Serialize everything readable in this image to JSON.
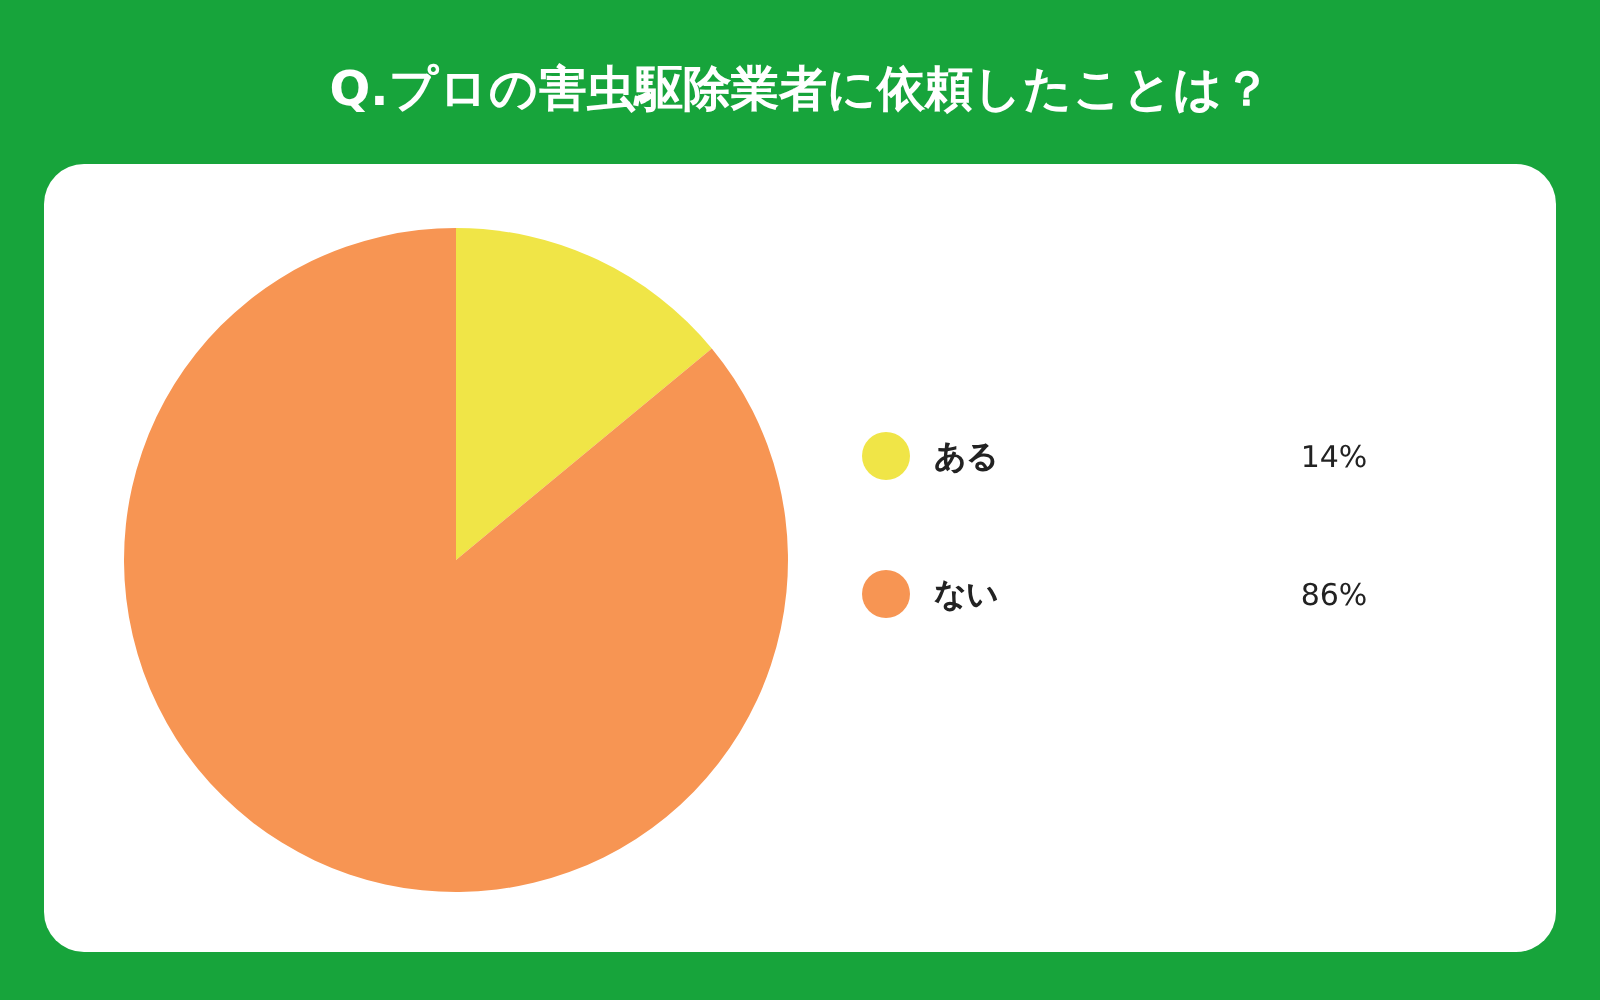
{
  "chart_data": {
    "type": "pie",
    "title": "Q.プロの害虫駆除業者に依頼したことは？",
    "categories": [
      "ある",
      "ない"
    ],
    "values": [
      14,
      86
    ],
    "colors": [
      "#f0e547",
      "#f79553"
    ],
    "value_labels": [
      "14%",
      "86%"
    ],
    "legend": "right"
  }
}
